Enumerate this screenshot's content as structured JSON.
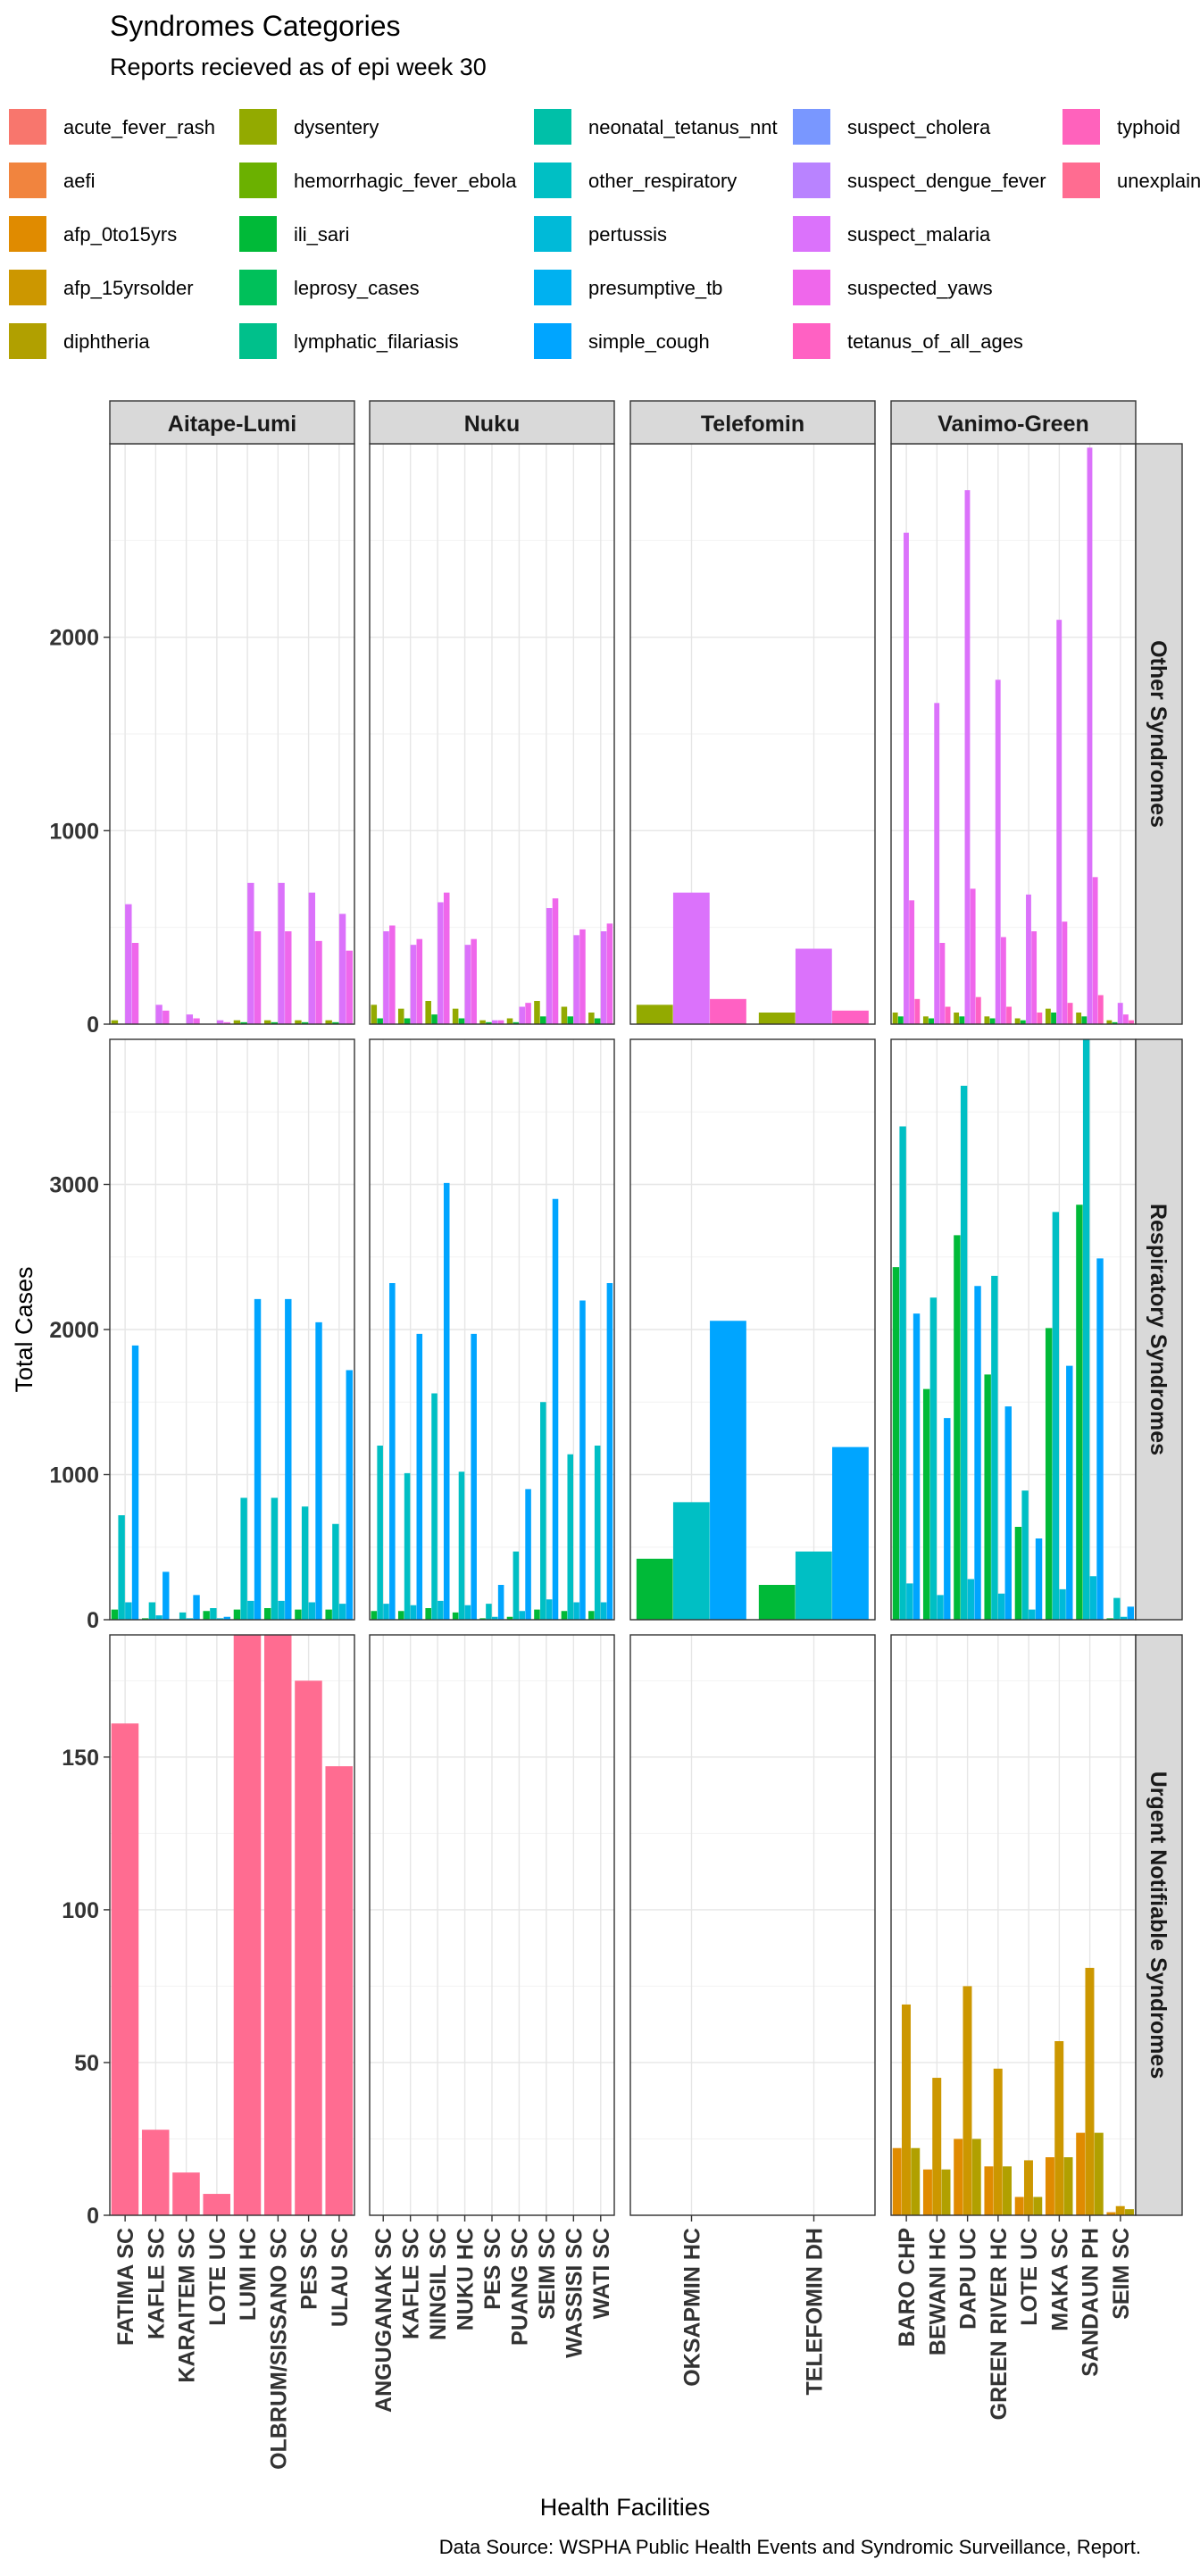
{
  "chart_data": {
    "type": "bar",
    "title": "Syndromes Categories",
    "subtitle": "Reports recieved as of epi week 30",
    "xlabel": "Health Facilities",
    "ylabel": "Total Cases",
    "caption": "Data Source: WSPHA Public Health Events and Syndromic Surveillance, Report.",
    "grid": true,
    "legend_position": "top",
    "legend": [
      {
        "name": "acute_fever_rash",
        "color": "#F8766D"
      },
      {
        "name": "aefi",
        "color": "#F1843E"
      },
      {
        "name": "afp_0to15yrs",
        "color": "#E08B00"
      },
      {
        "name": "afp_15yrsolder",
        "color": "#CC9700"
      },
      {
        "name": "diphtheria",
        "color": "#B1A000"
      },
      {
        "name": "dysentery",
        "color": "#93AA00"
      },
      {
        "name": "hemorrhagic_fever_ebola",
        "color": "#6BB100"
      },
      {
        "name": "ili_sari",
        "color": "#00BA38"
      },
      {
        "name": "leprosy_cases",
        "color": "#00C05A"
      },
      {
        "name": "lymphatic_filariasis",
        "color": "#00C08B"
      },
      {
        "name": "neonatal_tetanus_nnt",
        "color": "#00C0A8"
      },
      {
        "name": "other_respiratory",
        "color": "#00BFC4"
      },
      {
        "name": "pertussis",
        "color": "#00BAD8"
      },
      {
        "name": "presumptive_tb",
        "color": "#00B1F0"
      },
      {
        "name": "simple_cough",
        "color": "#00A5FF"
      },
      {
        "name": "suspect_cholera",
        "color": "#7997FF"
      },
      {
        "name": "suspect_dengue_fever",
        "color": "#B983FF"
      },
      {
        "name": "suspect_malaria",
        "color": "#DB72FB"
      },
      {
        "name": "suspected_yaws",
        "color": "#EF67EB"
      },
      {
        "name": "tetanus_of_all_ages",
        "color": "#FF61C3"
      },
      {
        "name": "typhoid",
        "color": "#FF62BC"
      },
      {
        "name": "unexplained",
        "label": "unexplain",
        "color": "#FF6C91"
      }
    ],
    "columns": [
      {
        "name": "Aitape-Lumi",
        "ticks": [
          "FATIMA SC",
          "KAFLE SC",
          "KARAITEM SC",
          "LOTE UC",
          "LUMI HC",
          "OLBRUM/SISSANO SC",
          "PES SC",
          "ULAU SC"
        ],
        "n": 8,
        "tick_slots": [
          0,
          1,
          2,
          3,
          4,
          5,
          6,
          7
        ]
      },
      {
        "name": "Nuku",
        "ticks": [
          "ANGUGANAK SC",
          "KAFLE SC",
          "NINGIL SC",
          "NUKU HC",
          "PES SC",
          "PUANG SC",
          "SEIM SC",
          "WASSISI SC",
          "WATI SC"
        ],
        "n": 9,
        "tick_slots": [
          0,
          1,
          2,
          3,
          4,
          5,
          6,
          7,
          8
        ]
      },
      {
        "name": "Telefomin",
        "ticks": [
          "OKSAPMIN HC",
          "TELEFOMIN DH"
        ],
        "n": 2,
        "tick_slots": [
          0,
          1
        ]
      },
      {
        "name": "Vanimo-Green",
        "ticks": [
          "BARO CHP",
          "BEWANI HC",
          "DAPU UC",
          "GREEN RIVER HC",
          "LOTE UC",
          "MAKA SC",
          "SANDAUN PH",
          "SEIM SC"
        ],
        "n": 8,
        "tick_slots": [
          0,
          1,
          2,
          3,
          4,
          5,
          6,
          7
        ]
      }
    ],
    "rows": [
      {
        "name": "Other Syndromes",
        "ylim": [
          0,
          3000
        ],
        "yticks": [
          0,
          1000,
          2000
        ],
        "panels": [
          {
            "series": [
              {
                "name": "dysentery",
                "values": [
                  20,
                  0,
                  0,
                  0,
                  20,
                  20,
                  20,
                  20
                ]
              },
              {
                "name": "ili_sari",
                "values": [
                  0,
                  0,
                  0,
                  0,
                  10,
                  10,
                  10,
                  10
                ]
              },
              {
                "name": "suspect_malaria",
                "values": [
                  620,
                  100,
                  50,
                  20,
                  730,
                  730,
                  680,
                  570
                ]
              },
              {
                "name": "suspected_yaws",
                "values": [
                  420,
                  70,
                  30,
                  10,
                  480,
                  480,
                  430,
                  380
                ]
              }
            ]
          },
          {
            "series": [
              {
                "name": "dysentery",
                "values": [
                  100,
                  80,
                  120,
                  80,
                  20,
                  30,
                  120,
                  90,
                  60
                ]
              },
              {
                "name": "ili_sari",
                "values": [
                  30,
                  30,
                  50,
                  30,
                  10,
                  10,
                  40,
                  40,
                  30
                ]
              },
              {
                "name": "suspect_malaria",
                "values": [
                  480,
                  410,
                  630,
                  410,
                  20,
                  90,
                  600,
                  460,
                  480
                ]
              },
              {
                "name": "suspected_yaws",
                "values": [
                  510,
                  440,
                  680,
                  440,
                  20,
                  110,
                  650,
                  490,
                  520
                ]
              }
            ]
          },
          {
            "series": [
              {
                "name": "dysentery",
                "values": [
                  100,
                  60
                ]
              },
              {
                "name": "suspect_malaria",
                "values": [
                  680,
                  390
                ]
              },
              {
                "name": "tetanus_of_all_ages",
                "values": [
                  130,
                  70
                ]
              }
            ]
          },
          {
            "series": [
              {
                "name": "dysentery",
                "values": [
                  60,
                  40,
                  60,
                  40,
                  30,
                  80,
                  60,
                  20
                ]
              },
              {
                "name": "ili_sari",
                "values": [
                  40,
                  30,
                  40,
                  30,
                  20,
                  60,
                  40,
                  10
                ]
              },
              {
                "name": "suspect_malaria",
                "values": [
                  2540,
                  1660,
                  2760,
                  1780,
                  670,
                  2090,
                  2980,
                  110
                ]
              },
              {
                "name": "suspected_yaws",
                "values": [
                  640,
                  420,
                  700,
                  450,
                  480,
                  530,
                  760,
                  50
                ]
              },
              {
                "name": "tetanus_of_all_ages",
                "values": [
                  130,
                  90,
                  140,
                  90,
                  60,
                  110,
                  150,
                  20
                ]
              }
            ]
          }
        ]
      },
      {
        "name": "Respiratory Syndromes",
        "ylim": [
          0,
          4000
        ],
        "yticks": [
          0,
          1000,
          2000,
          3000
        ],
        "panels": [
          {
            "series": [
              {
                "name": "ili_sari",
                "values": [
                  70,
                  10,
                  0,
                  60,
                  70,
                  80,
                  70,
                  70
                ]
              },
              {
                "name": "other_respiratory",
                "values": [
                  720,
                  120,
                  50,
                  80,
                  840,
                  840,
                  780,
                  660
                ]
              },
              {
                "name": "pertussis",
                "values": [
                  120,
                  30,
                  10,
                  10,
                  130,
                  130,
                  120,
                  110
                ]
              },
              {
                "name": "simple_cough",
                "values": [
                  1890,
                  330,
                  170,
                  20,
                  2210,
                  2210,
                  2050,
                  1720
                ]
              }
            ]
          },
          {
            "series": [
              {
                "name": "ili_sari",
                "values": [
                  60,
                  60,
                  80,
                  50,
                  10,
                  20,
                  70,
                  60,
                  60
                ]
              },
              {
                "name": "other_respiratory",
                "values": [
                  1200,
                  1010,
                  1560,
                  1020,
                  110,
                  470,
                  1500,
                  1140,
                  1200
                ]
              },
              {
                "name": "pertussis",
                "values": [
                  110,
                  100,
                  130,
                  100,
                  20,
                  60,
                  140,
                  120,
                  120
                ]
              },
              {
                "name": "simple_cough",
                "values": [
                  2320,
                  1970,
                  3010,
                  1970,
                  240,
                  900,
                  2900,
                  2200,
                  2320
                ]
              }
            ]
          },
          {
            "series": [
              {
                "name": "ili_sari",
                "values": [
                  420,
                  240
                ]
              },
              {
                "name": "other_respiratory",
                "values": [
                  810,
                  470
                ]
              },
              {
                "name": "simple_cough",
                "values": [
                  2060,
                  1190
                ]
              }
            ]
          },
          {
            "series": [
              {
                "name": "ili_sari",
                "values": [
                  2430,
                  1590,
                  2650,
                  1690,
                  640,
                  2010,
                  2860,
                  10
                ]
              },
              {
                "name": "other_respiratory",
                "values": [
                  3400,
                  2220,
                  3680,
                  2370,
                  890,
                  2810,
                  4000,
                  150
                ]
              },
              {
                "name": "pertussis",
                "values": [
                  250,
                  170,
                  280,
                  180,
                  70,
                  210,
                  300,
                  20
                ]
              },
              {
                "name": "simple_cough",
                "values": [
                  2110,
                  1390,
                  2300,
                  1470,
                  560,
                  1750,
                  2490,
                  90
                ]
              }
            ]
          }
        ]
      },
      {
        "name": "Urgent Notifiable Syndromes",
        "ylim": [
          0,
          190
        ],
        "yticks": [
          0,
          50,
          100,
          150
        ],
        "panels": [
          {
            "series": [
              {
                "name": "unexplained",
                "values": [
                  161,
                  28,
                  14,
                  7,
                  190,
                  190,
                  175,
                  147
                ]
              }
            ]
          },
          {
            "series": []
          },
          {
            "series": []
          },
          {
            "series": [
              {
                "name": "afp_0to15yrs",
                "values": [
                  22,
                  15,
                  25,
                  16,
                  6,
                  19,
                  27,
                  1
                ]
              },
              {
                "name": "afp_15yrsolder",
                "values": [
                  69,
                  45,
                  75,
                  48,
                  18,
                  57,
                  81,
                  3
                ]
              },
              {
                "name": "diphtheria",
                "values": [
                  22,
                  15,
                  25,
                  16,
                  6,
                  19,
                  27,
                  2
                ]
              }
            ]
          }
        ]
      }
    ]
  }
}
